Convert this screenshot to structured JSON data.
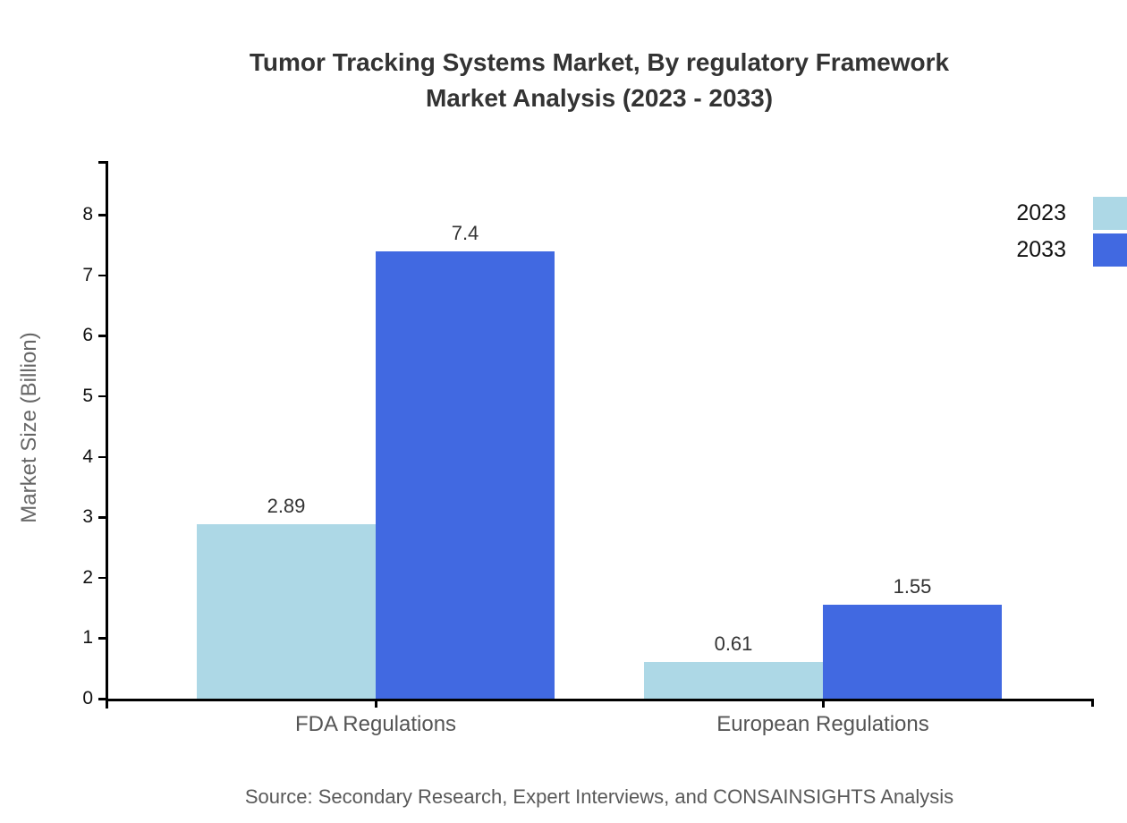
{
  "title": {
    "line1": "Tumor Tracking Systems Market, By regulatory Framework",
    "line2": "Market Analysis (2023 - 2033)"
  },
  "source": {
    "text": "Source: Secondary Research, Expert Interviews, and CONSAINSIGHTS Analysis"
  },
  "legend": [
    {
      "label": "2023",
      "color": "#ADD8E6"
    },
    {
      "label": "2033",
      "color": "#4169E1"
    }
  ],
  "colors": {
    "bar_2023": "#ADD8E6",
    "bar_2033": "#4169E1",
    "axis": "#000000",
    "title_text": "#333333",
    "tick_text": "#111111",
    "category_text": "#555555",
    "value_text": "#333333",
    "muted_text": "#666666",
    "source_text": "#595959",
    "background": "#ffffff"
  },
  "chart_data": {
    "type": "bar",
    "title": "Tumor Tracking Systems Market, By regulatory Framework Market Analysis (2023 - 2033)",
    "categories": [
      "FDA Regulations",
      "European Regulations"
    ],
    "series": [
      {
        "name": "2023",
        "color": "#ADD8E6",
        "values": [
          2.89,
          0.61
        ]
      },
      {
        "name": "2033",
        "color": "#4169E1",
        "values": [
          7.4,
          1.55
        ]
      }
    ],
    "xlabel": "",
    "ylabel": "Market Size (Billion)",
    "ylim": [
      0,
      8.9
    ],
    "yticks": [
      0,
      1,
      2,
      3,
      4,
      5,
      6,
      7,
      8
    ],
    "grid": false,
    "legend_position": "top-right",
    "value_labels": true,
    "source": "Source: Secondary Research, Expert Interviews, and CONSAINSIGHTS Analysis"
  }
}
